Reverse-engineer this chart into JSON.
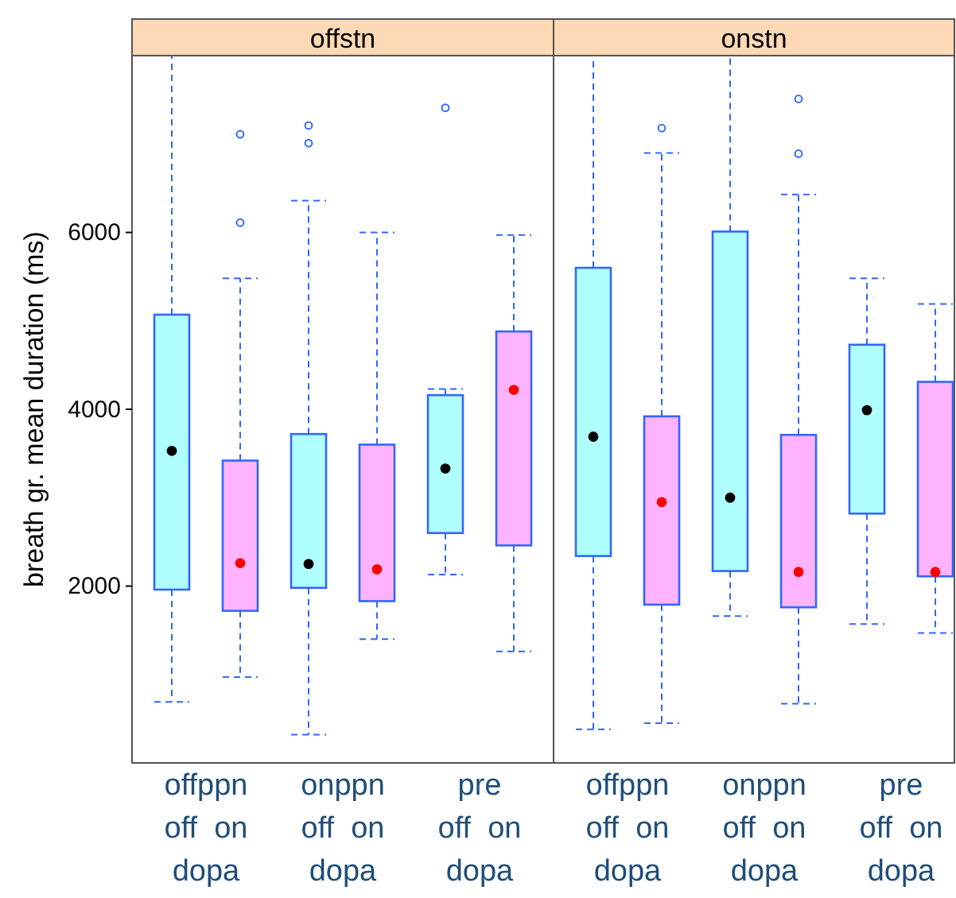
{
  "chart_data": [
    {
      "type": "box",
      "title": "offstn",
      "ylabel": "breath gr. mean duration (ms)",
      "categories": [
        "offppn\noff  on\ndopa",
        "onppn\noff  on\ndopa",
        "pre\noff  on\ndopa"
      ],
      "ylim": [
        0,
        8000
      ],
      "yticks": [
        2000,
        4000,
        6000
      ],
      "grid": false,
      "series": [
        {
          "color": "#b0ffff",
          "boxes": [
            {
              "low": 690,
              "q1": 1960,
              "median": 3530,
              "q3": 5070,
              "high": 8000
            },
            {
              "low": 320,
              "q1": 1980,
              "median": 2250,
              "q3": 3720,
              "high": 6360,
              "outliers": [
                7010,
                7210
              ]
            },
            {
              "low": 2130,
              "q1": 2600,
              "median": 3330,
              "q3": 4160,
              "high": 4230,
              "outliers": [
                7410
              ]
            }
          ]
        },
        {
          "color": "#ffb3ff",
          "boxes": [
            {
              "low": 970,
              "q1": 1720,
              "median": 2260,
              "q3": 3420,
              "high": 5480,
              "outliers": [
                6110,
                7110
              ]
            },
            {
              "low": 1400,
              "q1": 1830,
              "median": 2190,
              "q3": 3600,
              "high": 6000
            },
            {
              "low": 1260,
              "q1": 2460,
              "median": 4220,
              "q3": 4880,
              "high": 5970
            }
          ]
        }
      ]
    },
    {
      "type": "box",
      "title": "onstn",
      "categories": [
        "offppn\noff  on\ndopa",
        "onppn\noff  on\ndopa",
        "pre\noff  on\ndopa"
      ],
      "ylim": [
        0,
        8000
      ],
      "tick_labels": "x",
      "grid": false,
      "series": [
        {
          "color": "#b0ffff",
          "boxes": [
            {
              "low": 380,
              "q1": 2340,
              "median": 3690,
              "q3": 5600,
              "high": 8000
            },
            {
              "low": 1660,
              "q1": 2170,
              "median": 3000,
              "q3": 6010,
              "high": 8000
            },
            {
              "low": 1570,
              "q1": 2820,
              "median": 3990,
              "q3": 4730,
              "high": 5480
            }
          ]
        },
        {
          "color": "#ffb3ff",
          "boxes": [
            {
              "low": 450,
              "q1": 1790,
              "median": 2950,
              "q3": 3920,
              "high": 6900,
              "outliers": [
                7180
              ]
            },
            {
              "low": 670,
              "q1": 1760,
              "median": 2160,
              "q3": 3710,
              "high": 6430,
              "outliers": [
                6890,
                7510
              ]
            },
            {
              "low": 1470,
              "q1": 2110,
              "median": 2160,
              "q3": 4310,
              "high": 5190
            }
          ]
        }
      ]
    }
  ]
}
